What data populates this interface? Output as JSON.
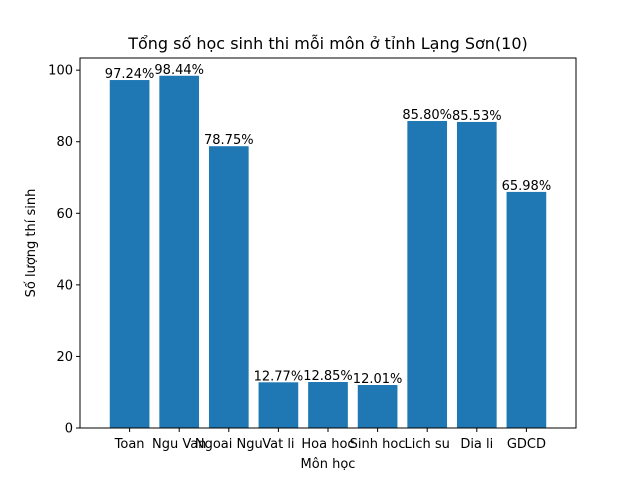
{
  "chart_data": {
    "type": "bar",
    "title": "Tổng số học sinh thi mỗi môn ở tỉnh Lạng Sơn(10)",
    "xlabel": "Môn học",
    "ylabel": "Số lượng thí sinh",
    "categories": [
      "Toan",
      "Ngu Van",
      "Ngoai Ngu",
      "Vat li",
      "Hoa hoc",
      "Sinh hoc",
      "Lich su",
      "Dia li",
      "GDCD"
    ],
    "values": [
      97.24,
      98.44,
      78.75,
      12.77,
      12.85,
      12.01,
      85.8,
      85.53,
      65.98
    ],
    "data_labels": [
      "97.24%",
      "98.44%",
      "78.75%",
      "12.77%",
      "12.85%",
      "12.01%",
      "85.80%",
      "85.53%",
      "65.98%"
    ],
    "ylim": [
      0,
      103.4
    ],
    "yticks": [
      0,
      20,
      40,
      60,
      80,
      100
    ],
    "grid": false,
    "legend": "none",
    "bar_color": "#1f77b4"
  }
}
